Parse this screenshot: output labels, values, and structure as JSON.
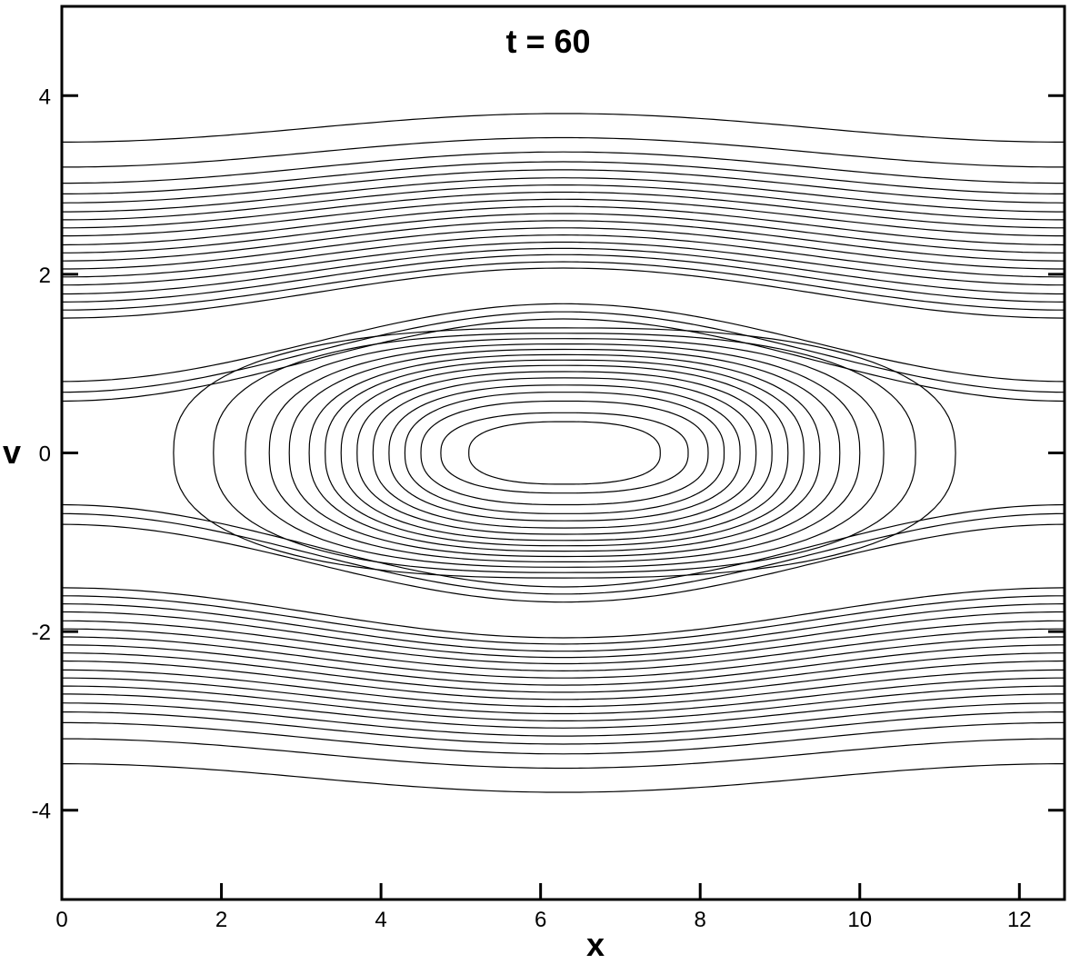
{
  "chart_data": {
    "type": "contour",
    "title": "t = 60",
    "x_label": "x",
    "y_label": "v",
    "xlim": [
      0,
      12.566
    ],
    "ylim": [
      -5,
      5
    ],
    "xticks": [
      0,
      2,
      4,
      6,
      8,
      10,
      12
    ],
    "yticks": [
      -4,
      -2,
      0,
      2,
      4
    ],
    "color": "#000000",
    "center_x": 6.3,
    "passing": [
      {
        "edge": 3.48,
        "mid": 3.8
      },
      {
        "edge": 3.2,
        "mid": 3.53
      },
      {
        "edge": 3.02,
        "mid": 3.37
      },
      {
        "edge": 2.9,
        "mid": 3.26
      },
      {
        "edge": 2.8,
        "mid": 3.17
      },
      {
        "edge": 2.7,
        "mid": 3.08
      },
      {
        "edge": 2.61,
        "mid": 3.0
      },
      {
        "edge": 2.52,
        "mid": 2.92
      },
      {
        "edge": 2.43,
        "mid": 2.84
      },
      {
        "edge": 2.33,
        "mid": 2.76
      },
      {
        "edge": 2.24,
        "mid": 2.68
      },
      {
        "edge": 2.15,
        "mid": 2.6
      },
      {
        "edge": 2.06,
        "mid": 2.52
      },
      {
        "edge": 1.97,
        "mid": 2.44
      },
      {
        "edge": 1.88,
        "mid": 2.36
      },
      {
        "edge": 1.78,
        "mid": 2.29
      },
      {
        "edge": 1.69,
        "mid": 2.22
      },
      {
        "edge": 1.6,
        "mid": 2.14
      },
      {
        "edge": 1.51,
        "mid": 2.07
      },
      {
        "edge": 0.8,
        "mid": 1.67
      },
      {
        "edge": 0.68,
        "mid": 1.58
      },
      {
        "edge": 0.58,
        "mid": 1.5
      },
      {
        "edge": -0.8,
        "mid": -1.67
      },
      {
        "edge": -0.68,
        "mid": -1.58
      },
      {
        "edge": -0.58,
        "mid": -1.5
      },
      {
        "edge": -1.51,
        "mid": -2.07
      },
      {
        "edge": -1.6,
        "mid": -2.14
      },
      {
        "edge": -1.69,
        "mid": -2.22
      },
      {
        "edge": -1.78,
        "mid": -2.29
      },
      {
        "edge": -1.88,
        "mid": -2.36
      },
      {
        "edge": -1.97,
        "mid": -2.44
      },
      {
        "edge": -2.06,
        "mid": -2.52
      },
      {
        "edge": -2.15,
        "mid": -2.6
      },
      {
        "edge": -2.24,
        "mid": -2.68
      },
      {
        "edge": -2.33,
        "mid": -2.76
      },
      {
        "edge": -2.43,
        "mid": -2.84
      },
      {
        "edge": -2.52,
        "mid": -2.92
      },
      {
        "edge": -2.61,
        "mid": -3.0
      },
      {
        "edge": -2.7,
        "mid": -3.08
      },
      {
        "edge": -2.8,
        "mid": -3.17
      },
      {
        "edge": -2.9,
        "mid": -3.26
      },
      {
        "edge": -3.02,
        "mid": -3.37
      },
      {
        "edge": -3.2,
        "mid": -3.53
      },
      {
        "edge": -3.48,
        "mid": -3.8
      }
    ],
    "trapped": [
      {
        "x_half": 1.2,
        "v_half": 0.35
      },
      {
        "x_half": 1.55,
        "v_half": 0.45
      },
      {
        "x_half": 1.8,
        "v_half": 0.58
      },
      {
        "x_half": 2.0,
        "v_half": 0.68
      },
      {
        "x_half": 2.2,
        "v_half": 0.76
      },
      {
        "x_half": 2.4,
        "v_half": 0.84
      },
      {
        "x_half": 2.6,
        "v_half": 0.91
      },
      {
        "x_half": 2.8,
        "v_half": 0.98
      },
      {
        "x_half": 3.0,
        "v_half": 1.04
      },
      {
        "x_half": 3.2,
        "v_half": 1.1
      },
      {
        "x_half": 3.45,
        "v_half": 1.16
      },
      {
        "x_half": 3.7,
        "v_half": 1.22
      },
      {
        "x_half": 4.0,
        "v_half": 1.28
      },
      {
        "x_half": 4.4,
        "v_half": 1.34
      },
      {
        "x_half": 4.9,
        "v_half": 1.4
      }
    ]
  }
}
